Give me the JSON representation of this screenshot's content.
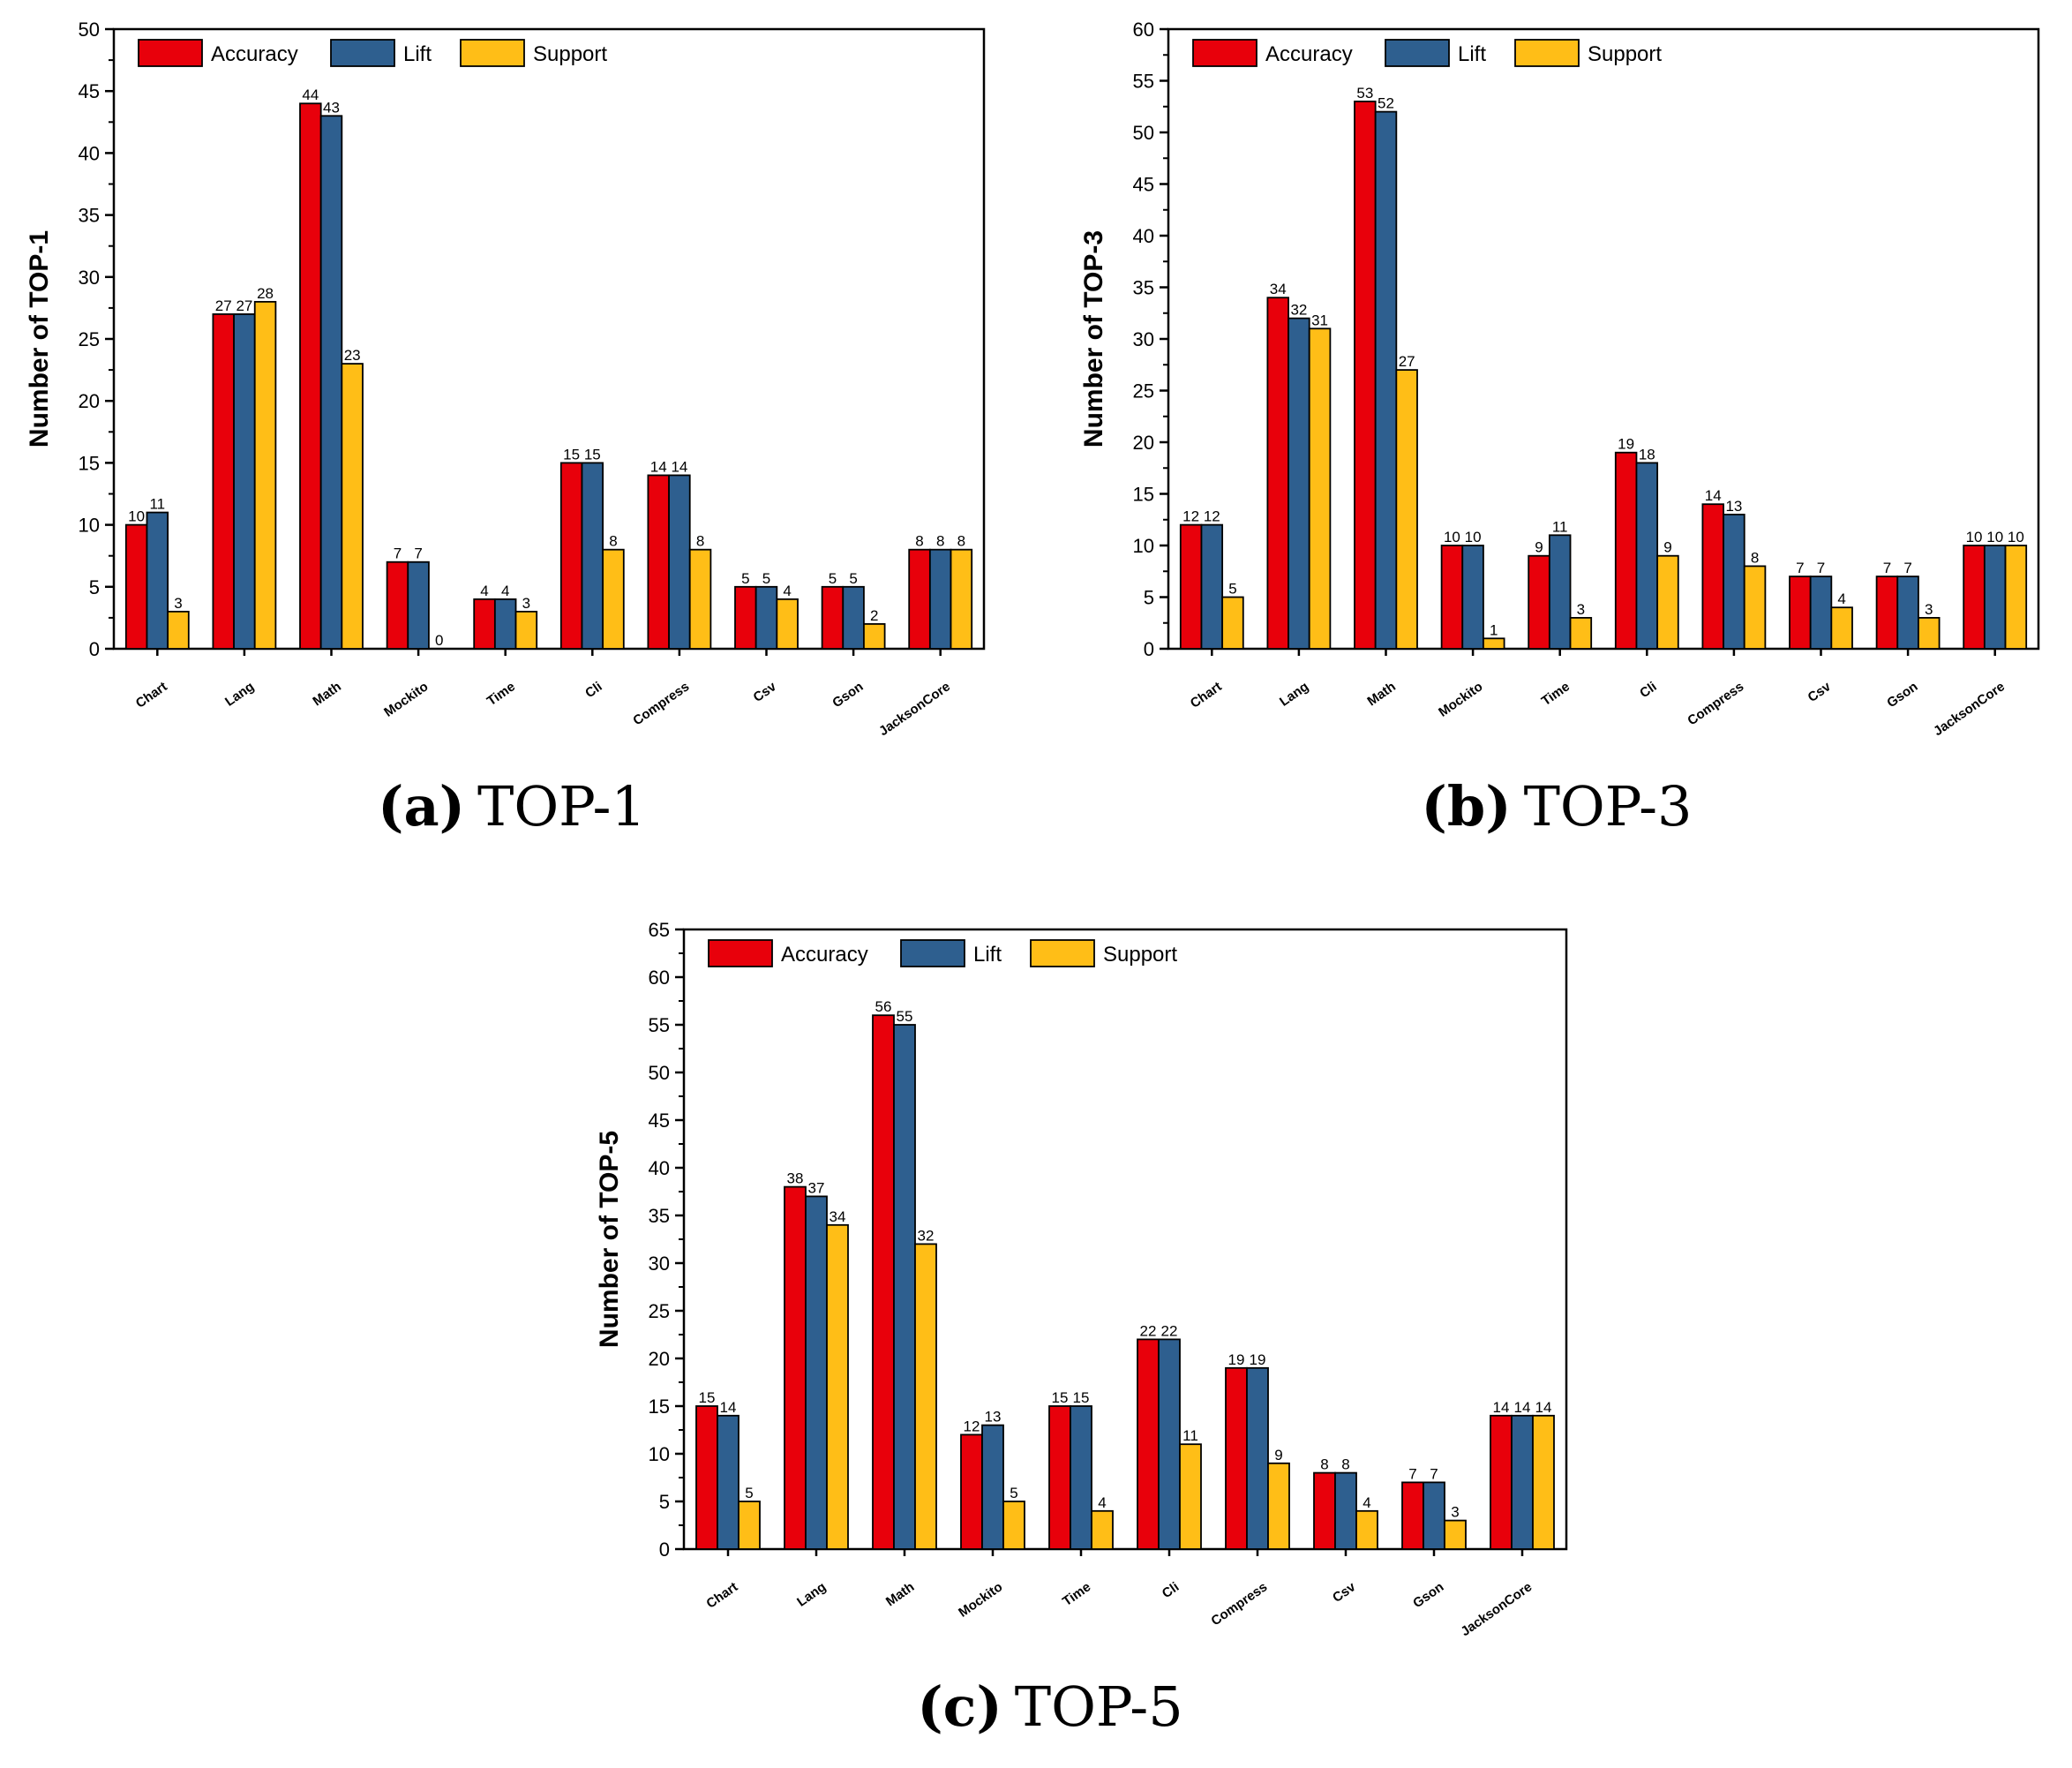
{
  "colors": {
    "accuracy": "#e8000b",
    "lift": "#2e5f8f",
    "support": "#ffbe17",
    "stroke": "#000000"
  },
  "legend": [
    "Accuracy",
    "Lift",
    "Support"
  ],
  "chart_data": [
    {
      "id": "a",
      "type": "bar",
      "caption_letter": "(a)",
      "caption_text": "TOP-1",
      "ylabel": "Number of TOP-1",
      "ylim": [
        0,
        50
      ],
      "ytick_step": 5,
      "categories": [
        "Chart",
        "Lang",
        "Math",
        "Mockito",
        "Time",
        "Cli",
        "Compress",
        "Csv",
        "Gson",
        "JacksonCore"
      ],
      "series": [
        {
          "name": "Accuracy",
          "values": [
            10,
            27,
            44,
            7,
            4,
            15,
            14,
            5,
            5,
            8
          ]
        },
        {
          "name": "Lift",
          "values": [
            11,
            27,
            43,
            7,
            4,
            15,
            14,
            5,
            5,
            8
          ]
        },
        {
          "name": "Support",
          "values": [
            3,
            28,
            23,
            0,
            3,
            8,
            8,
            4,
            2,
            8
          ]
        }
      ]
    },
    {
      "id": "b",
      "type": "bar",
      "caption_letter": "(b)",
      "caption_text": "TOP-3",
      "ylabel": "Number of TOP-3",
      "ylim": [
        0,
        60
      ],
      "ytick_step": 5,
      "categories": [
        "Chart",
        "Lang",
        "Math",
        "Mockito",
        "Time",
        "Cli",
        "Compress",
        "Csv",
        "Gson",
        "JacksonCore"
      ],
      "series": [
        {
          "name": "Accuracy",
          "values": [
            12,
            34,
            53,
            10,
            9,
            19,
            14,
            7,
            7,
            10
          ]
        },
        {
          "name": "Lift",
          "values": [
            12,
            32,
            52,
            10,
            11,
            18,
            13,
            7,
            7,
            10
          ]
        },
        {
          "name": "Support",
          "values": [
            5,
            31,
            27,
            1,
            3,
            9,
            8,
            4,
            3,
            10
          ]
        }
      ]
    },
    {
      "id": "c",
      "type": "bar",
      "caption_letter": "(c)",
      "caption_text": "TOP-5",
      "ylabel": "Number of TOP-5",
      "ylim": [
        0,
        65
      ],
      "ytick_step": 5,
      "categories": [
        "Chart",
        "Lang",
        "Math",
        "Mockito",
        "Time",
        "Cli",
        "Compress",
        "Csv",
        "Gson",
        "JacksonCore"
      ],
      "series": [
        {
          "name": "Accuracy",
          "values": [
            15,
            38,
            56,
            12,
            15,
            22,
            19,
            8,
            7,
            14
          ]
        },
        {
          "name": "Lift",
          "values": [
            14,
            37,
            55,
            13,
            15,
            22,
            19,
            8,
            7,
            14
          ]
        },
        {
          "name": "Support",
          "values": [
            5,
            34,
            32,
            5,
            4,
            11,
            9,
            4,
            3,
            14
          ]
        }
      ]
    }
  ]
}
